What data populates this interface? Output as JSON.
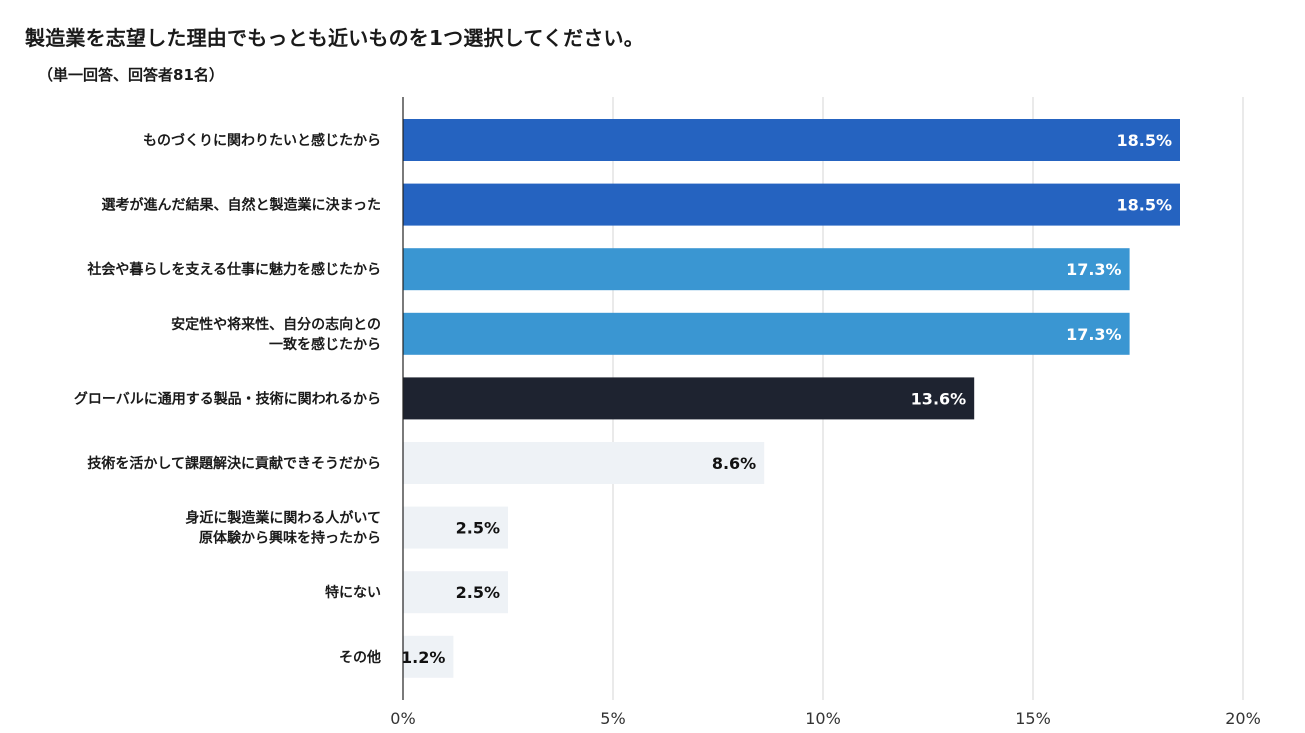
{
  "chart_title": "製造業を志望した理由でもっとも近いものを1つ選択してください。",
  "chart_subtitle": "（単一回答、回答者81名）",
  "chart_data": {
    "type": "bar",
    "orientation": "horizontal",
    "title": "製造業を志望した理由でもっとも近いものを1つ選択してください。",
    "subtitle": "（単一回答、回答者81名）",
    "xlabel": "",
    "ylabel": "",
    "xlim": [
      0,
      20
    ],
    "ticks": [
      0,
      5,
      10,
      15,
      20
    ],
    "tick_labels": [
      "0%",
      "5%",
      "10%",
      "15%",
      "20%"
    ],
    "grid": true,
    "legend": "none",
    "categories": [
      [
        "ものづくりに関わりたいと感じたから"
      ],
      [
        "選考が進んだ結果、自然と製造業に決まった"
      ],
      [
        "社会や暮らしを支える仕事に魅力を感じたから"
      ],
      [
        "安定性や将来性、自分の志向との",
        "一致を感じたから"
      ],
      [
        "グローバルに通用する製品・技術に関われるから"
      ],
      [
        "技術を活かして課題解決に貢献できそうだから"
      ],
      [
        "身近に製造業に関わる人がいて",
        "原体験から興味を持ったから"
      ],
      [
        "特にない"
      ],
      [
        "その他"
      ]
    ],
    "values": [
      18.5,
      18.5,
      17.3,
      17.3,
      13.6,
      8.6,
      2.5,
      2.5,
      1.2
    ],
    "value_labels": [
      "18.5%",
      "18.5%",
      "17.3%",
      "17.3%",
      "13.6%",
      "8.6%",
      "2.5%",
      "2.5%",
      "1.2%"
    ],
    "bar_colors": [
      "#2563c0",
      "#2563c0",
      "#3a96d2",
      "#3a96d2",
      "#1e2330",
      "#eef2f6",
      "#eef2f6",
      "#eef2f6",
      "#eef2f6"
    ],
    "label_colors": [
      "#ffffff",
      "#ffffff",
      "#ffffff",
      "#ffffff",
      "#ffffff",
      "#111111",
      "#111111",
      "#111111",
      "#111111"
    ]
  }
}
